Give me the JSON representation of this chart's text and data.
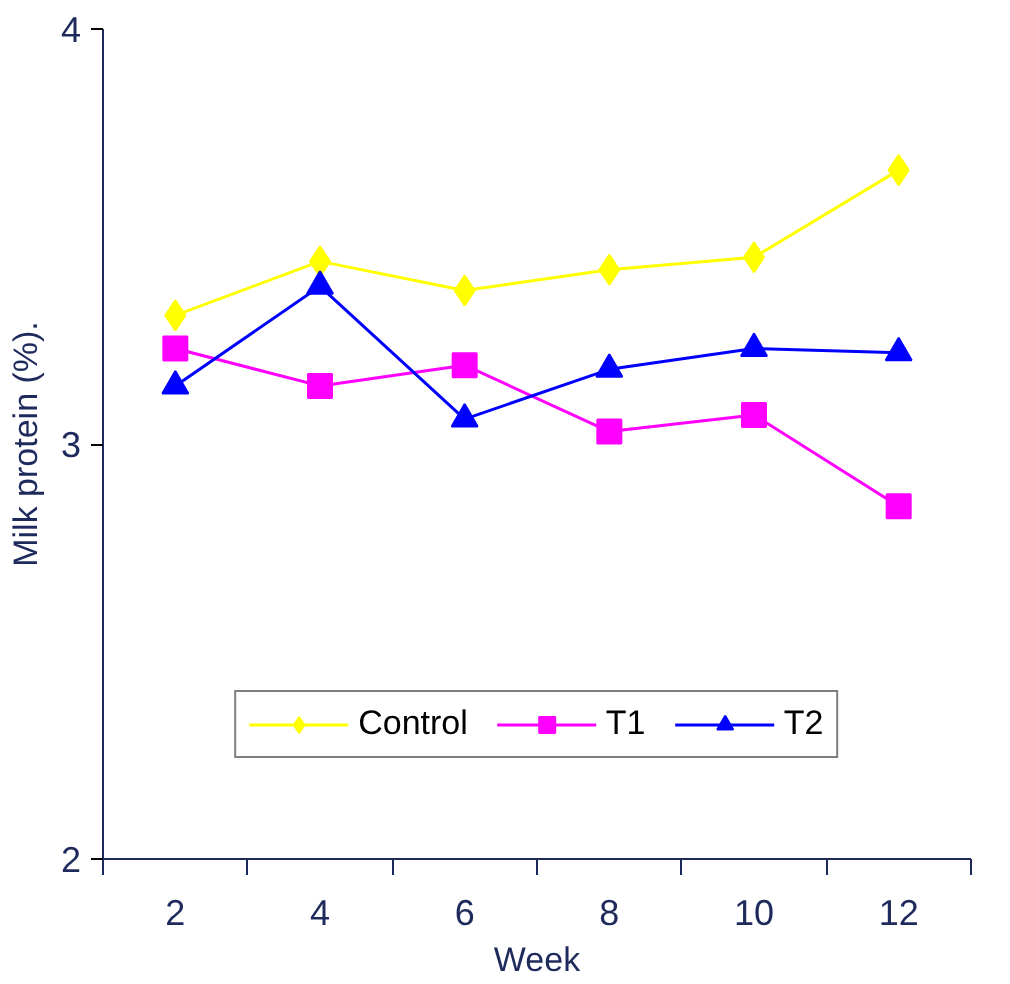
{
  "chart_data": {
    "type": "line",
    "xlabel": "Week",
    "ylabel": "Milk protein (%).",
    "categories": [
      "2",
      "4",
      "6",
      "8",
      "10",
      "12"
    ],
    "series": [
      {
        "name": "Control",
        "color": "#ffff00",
        "marker": "diamond",
        "values": [
          3.31,
          3.44,
          3.37,
          3.42,
          3.45,
          3.66
        ]
      },
      {
        "name": "T1",
        "color": "#ff00ff",
        "marker": "square",
        "values": [
          3.23,
          3.14,
          3.19,
          3.03,
          3.07,
          2.85
        ]
      },
      {
        "name": "T2",
        "color": "#0000ff",
        "marker": "triangle",
        "values": [
          3.14,
          3.38,
          3.06,
          3.18,
          3.23,
          3.22
        ]
      }
    ],
    "ylim": [
      2,
      4
    ],
    "yticks": [
      2,
      3,
      4
    ],
    "grid": false,
    "legend": "bottom",
    "line_style": "solid"
  }
}
